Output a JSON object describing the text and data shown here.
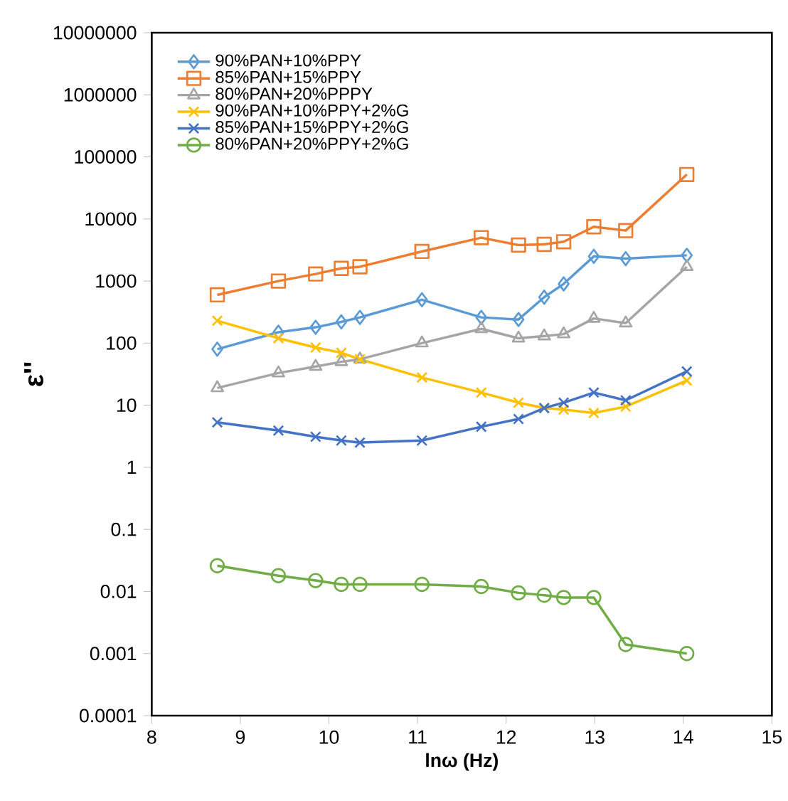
{
  "chart_data": {
    "type": "line",
    "xlabel": "lnω (Hz)",
    "ylabel": "ε''",
    "log": "y",
    "xlim": [
      8,
      15
    ],
    "xticks": [
      8,
      9,
      10,
      11,
      12,
      13,
      14,
      15
    ],
    "ylim": [
      0.0001,
      10000000
    ],
    "yticks": [
      0.0001,
      0.001,
      0.01,
      0.1,
      1,
      10,
      100,
      1000,
      10000,
      100000,
      1000000,
      10000000
    ],
    "x": [
      8.74,
      9.43,
      9.85,
      10.14,
      10.35,
      11.05,
      11.72,
      12.14,
      12.43,
      12.65,
      12.99,
      13.35,
      14.04
    ],
    "legend": "top left",
    "grid": false,
    "series": [
      {
        "name": "90%PAN+10%PPY",
        "color": "#5b9bd5",
        "marker": "diamond",
        "values": [
          80,
          150,
          180,
          220,
          260,
          500,
          260,
          240,
          550,
          900,
          2500,
          2300,
          2600
        ]
      },
      {
        "name": "85%PAN+15%PPY",
        "color": "#ed7d31",
        "marker": "square",
        "values": [
          600,
          1000,
          1300,
          1600,
          1700,
          3000,
          5000,
          3800,
          3900,
          4300,
          7500,
          6500,
          52000
        ]
      },
      {
        "name": "80%PAN+20%PPPY",
        "color": "#a5a5a5",
        "marker": "triangle",
        "values": [
          19,
          33,
          42,
          50,
          55,
          100,
          170,
          120,
          130,
          140,
          250,
          210,
          1700
        ]
      },
      {
        "name": "90%PAN+10%PPY+2%G",
        "color": "#ffc000",
        "marker": "cross",
        "values": [
          230,
          120,
          85,
          70,
          55,
          28,
          16,
          11,
          9,
          8.5,
          7.5,
          9.5,
          25
        ]
      },
      {
        "name": "85%PAN+15%PPY+2%G",
        "color": "#4472c4",
        "marker": "cross",
        "values": [
          5.3,
          3.9,
          3.1,
          2.7,
          2.5,
          2.7,
          4.5,
          6,
          9,
          11,
          16,
          12,
          35
        ]
      },
      {
        "name": "80%PAN+20%PPY+2%G",
        "color": "#70ad47",
        "marker": "circle",
        "values": [
          0.026,
          0.018,
          0.015,
          0.013,
          0.013,
          0.013,
          0.012,
          0.0095,
          0.0087,
          0.008,
          0.008,
          0.0014,
          0.001
        ]
      }
    ]
  }
}
